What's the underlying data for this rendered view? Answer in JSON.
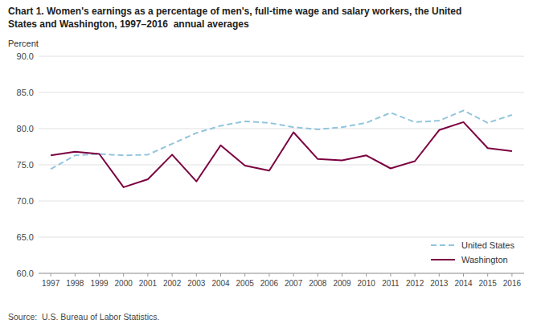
{
  "chart_data": {
    "type": "line",
    "title": "Chart 1. Women's earnings as a percentage of men's, full-time wage and salary workers, the United",
    "subtitle": "States and Washington, 1997–2016  annual averages",
    "y_label": "Percent",
    "annotations": [
      "Source:  U.S. Bureau of Labor Statistics."
    ],
    "x": [
      1997,
      1998,
      1999,
      2000,
      2001,
      2002,
      2003,
      2004,
      2005,
      2006,
      2007,
      2008,
      2009,
      2010,
      2011,
      2012,
      2013,
      2014,
      2015,
      2016
    ],
    "xlim": [
      1996.5,
      2016.5
    ],
    "xticks": [
      1997,
      1998,
      1999,
      2000,
      2001,
      2002,
      2003,
      2004,
      2005,
      2006,
      2007,
      2008,
      2009,
      2010,
      2011,
      2012,
      2013,
      2014,
      2015,
      2016
    ],
    "ylim": [
      60.0,
      90.0
    ],
    "yticks": [
      {
        "value": 60.0,
        "label": "60.0"
      },
      {
        "value": 65.0,
        "label": "65.0"
      },
      {
        "value": 70.0,
        "label": "70.0"
      },
      {
        "value": 75.0,
        "label": "75.0"
      },
      {
        "value": 80.0,
        "label": "80.0"
      },
      {
        "value": 85.0,
        "label": "85.0"
      },
      {
        "value": 90.0,
        "label": "90.0"
      }
    ],
    "grid": true,
    "legend": "lower right",
    "series": [
      {
        "name": "United States",
        "color": "#92c5de",
        "line_style": "dashed",
        "values": [
          74.4,
          76.3,
          76.5,
          76.3,
          76.4,
          77.9,
          79.4,
          80.4,
          81.0,
          80.8,
          80.2,
          79.9,
          80.2,
          80.8,
          82.2,
          80.9,
          81.1,
          82.5,
          80.8,
          81.9
        ]
      },
      {
        "name": "Washington",
        "color": "#7b0040",
        "line_style": "solid",
        "values": [
          76.3,
          76.8,
          76.5,
          71.9,
          73.0,
          76.4,
          72.7,
          77.7,
          74.9,
          74.2,
          79.5,
          75.8,
          75.6,
          76.3,
          74.5,
          75.5,
          79.8,
          80.9,
          77.3,
          76.9
        ]
      }
    ]
  }
}
